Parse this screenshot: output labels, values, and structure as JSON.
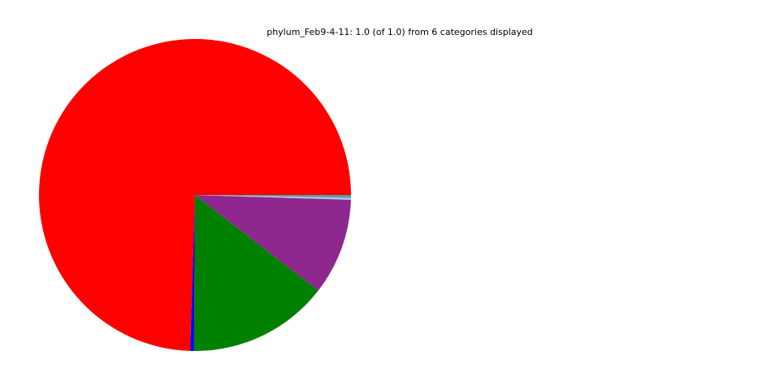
{
  "chart_data": {
    "type": "pie",
    "title": "phylum_Feb9-4-11: 1.0 (of 1.0) from 6 categories displayed",
    "slices": [
      {
        "value": 0.003,
        "color": "#4FA3A3"
      },
      {
        "value": 0.002,
        "color": "#AFC9E6"
      },
      {
        "value": 0.1,
        "color": "#8E278E"
      },
      {
        "value": 0.146,
        "color": "#008000"
      },
      {
        "value": 0.004,
        "color": "#0000FF"
      },
      {
        "value": 0.745,
        "color": "#FF0000"
      }
    ],
    "legend": "none"
  }
}
